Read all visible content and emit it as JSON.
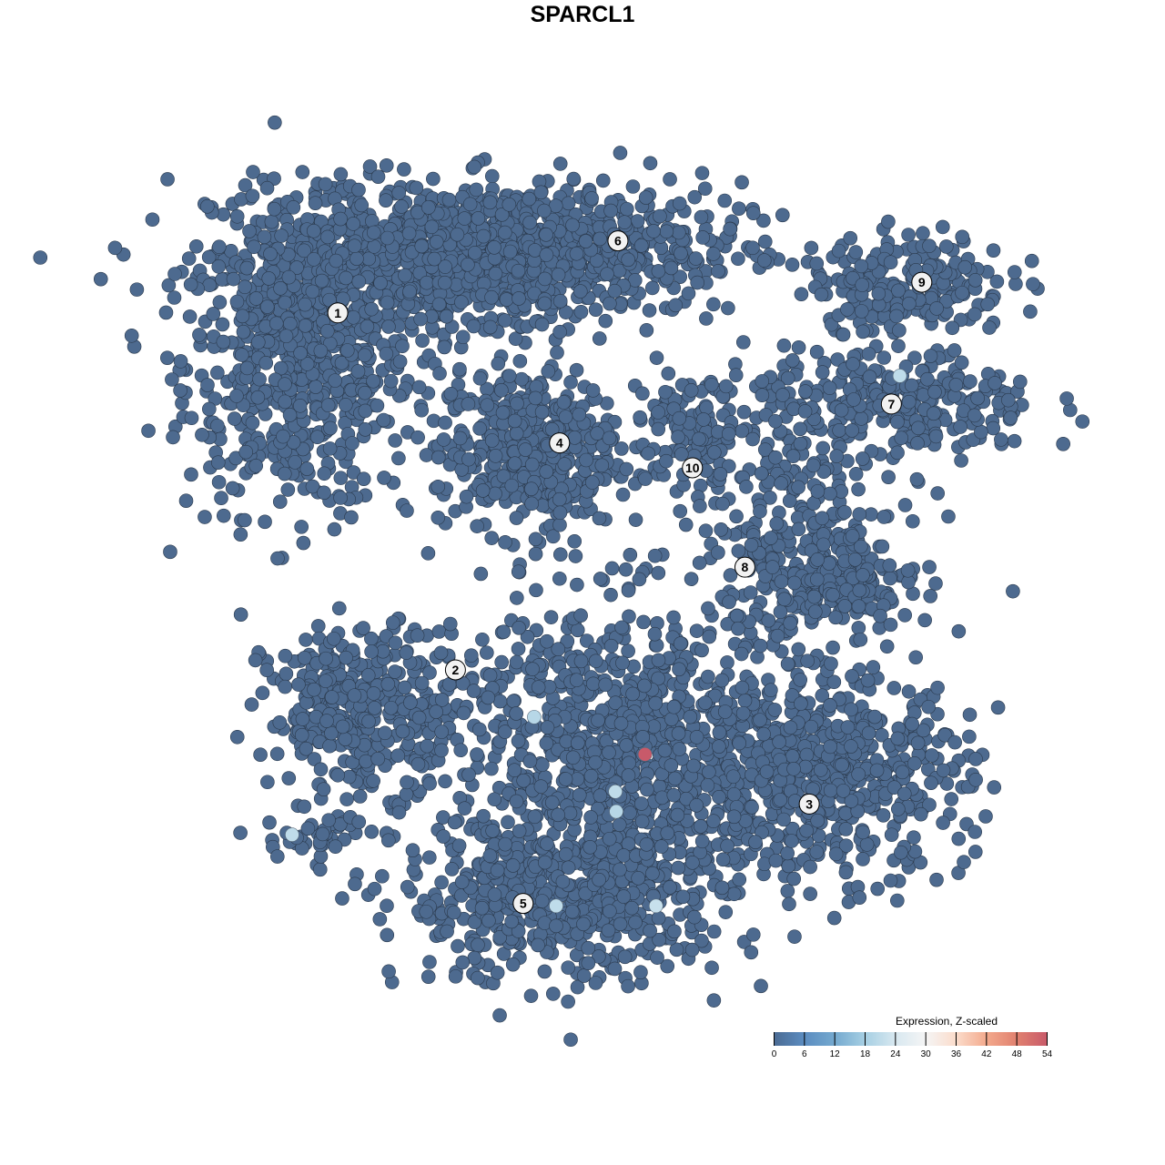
{
  "chart_data": {
    "type": "scatter",
    "title": "SPARCL1",
    "xlabel": "",
    "ylabel": "",
    "xlim": [
      -50,
      50
    ],
    "ylim": [
      -50,
      50
    ],
    "grid": false,
    "axes_visible": false,
    "point_color_default": "#4d6a8f",
    "point_edge_color": "#2b3a4d",
    "clusters": [
      {
        "label": "1",
        "label_pos": [
          -31.6,
          32.0
        ]
      },
      {
        "label": "2",
        "label_pos": [
          -17.7,
          -11.1
        ]
      },
      {
        "label": "3",
        "label_pos": [
          24.1,
          -27.3
        ]
      },
      {
        "label": "4",
        "label_pos": [
          -5.4,
          16.3
        ]
      },
      {
        "label": "5",
        "label_pos": [
          -9.7,
          -39.3
        ]
      },
      {
        "label": "6",
        "label_pos": [
          1.5,
          40.7
        ]
      },
      {
        "label": "7",
        "label_pos": [
          33.8,
          21.0
        ]
      },
      {
        "label": "8",
        "label_pos": [
          16.5,
          1.3
        ]
      },
      {
        "label": "9",
        "label_pos": [
          37.4,
          35.7
        ]
      },
      {
        "label": "10",
        "label_pos": [
          10.3,
          13.3
        ]
      }
    ],
    "point_groups": [
      {
        "center": [
          -36.1,
          25.8
        ],
        "sd": [
          7.5,
          9.9
        ],
        "n": 650,
        "value": 0
      },
      {
        "center": [
          -23.1,
          37.9
        ],
        "sd": [
          12.9,
          5.5
        ],
        "n": 550,
        "value": 0
      },
      {
        "center": [
          -9.1,
          39.8
        ],
        "sd": [
          14.0,
          4.4
        ],
        "n": 750,
        "value": 0
      },
      {
        "center": [
          -9.1,
          15.4
        ],
        "sd": [
          5.9,
          5.5
        ],
        "n": 450,
        "value": 0
      },
      {
        "center": [
          36.0,
          35.7
        ],
        "sd": [
          6.5,
          3.3
        ],
        "n": 200,
        "value": 0
      },
      {
        "center": [
          33.9,
          20.9
        ],
        "sd": [
          9.7,
          3.8
        ],
        "n": 300,
        "value": 0
      },
      {
        "center": [
          10.2,
          18.1
        ],
        "sd": [
          4.3,
          4.4
        ],
        "n": 120,
        "value": 0
      },
      {
        "center": [
          23.1,
          3.8
        ],
        "sd": [
          6.5,
          6.6
        ],
        "n": 280,
        "value": 0
      },
      {
        "center": [
          28.5,
          -1.6
        ],
        "sd": [
          4.3,
          2.7
        ],
        "n": 150,
        "value": 0
      },
      {
        "center": [
          -28.5,
          -15.9
        ],
        "sd": [
          6.5,
          5.5
        ],
        "n": 350,
        "value": 0
      },
      {
        "center": [
          25.3,
          -23.6
        ],
        "sd": [
          9.7,
          6.6
        ],
        "n": 600,
        "value": 0
      },
      {
        "center": [
          -4.8,
          -39.0
        ],
        "sd": [
          10.8,
          5.5
        ],
        "n": 550,
        "value": 0
      },
      {
        "center": [
          1.6,
          -20.3
        ],
        "sd": [
          11.8,
          9.9
        ],
        "n": 900,
        "value": 0
      },
      {
        "center": [
          -34.4,
          -31.3
        ],
        "sd": [
          3.2,
          1.6
        ],
        "n": 40,
        "value": 0
      }
    ],
    "highlighted_points": [
      {
        "x": 4.7,
        "y": -21.3,
        "value": 54
      },
      {
        "x": 34.8,
        "y": 24.4,
        "value": 21
      },
      {
        "x": -8.4,
        "y": -16.8,
        "value": 20
      },
      {
        "x": 1.2,
        "y": -25.8,
        "value": 21
      },
      {
        "x": 1.3,
        "y": -28.2,
        "value": 20
      },
      {
        "x": -37.0,
        "y": -31.0,
        "value": 21
      },
      {
        "x": -5.8,
        "y": -39.6,
        "value": 21
      },
      {
        "x": 6.0,
        "y": -39.6,
        "value": 22
      }
    ],
    "legend": {
      "title": "Expression, Z-scaled",
      "position": "bottom-right",
      "ticks": [
        "0",
        "6",
        "12",
        "18",
        "24",
        "30",
        "36",
        "42",
        "48",
        "54"
      ],
      "range": [
        0,
        54
      ],
      "colors": [
        "#4b6b93",
        "#5b8cc0",
        "#74a9cf",
        "#a6cfe3",
        "#d8e8f0",
        "#f5f5f5",
        "#fbdccb",
        "#f3a98c",
        "#e0806f",
        "#c85a6a"
      ]
    }
  }
}
